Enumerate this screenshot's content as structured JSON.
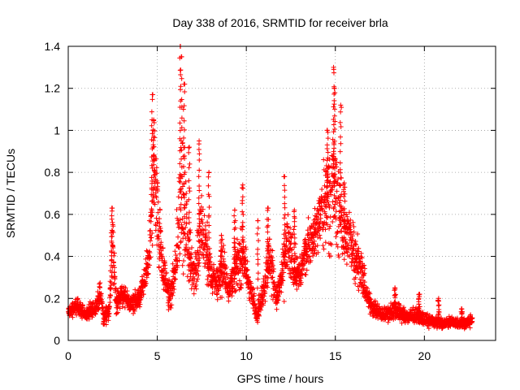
{
  "chart_data": {
    "type": "scatter",
    "title": "Day 338 of 2016, SRMTID for receiver brla",
    "xlabel": "GPS time / hours",
    "ylabel": "SRMTID / TECUs",
    "xlim": [
      0,
      24
    ],
    "ylim": [
      0,
      1.4
    ],
    "x_ticks": [
      0,
      5,
      10,
      15,
      20
    ],
    "x_tick_labels": [
      "0",
      "5",
      "10",
      "15",
      "20"
    ],
    "y_ticks": [
      0,
      0.2,
      0.4,
      0.6,
      0.8,
      1.0,
      1.2,
      1.4
    ],
    "y_tick_labels": [
      "0",
      "0.2",
      "0.4",
      "0.6",
      "0.8",
      "1",
      "1.2",
      "1.4"
    ],
    "grid": true,
    "marker": "+",
    "series": [
      {
        "name": "SRMTID",
        "color": "#ff0000",
        "profile": [
          [
            0.0,
            0.14,
            0.05
          ],
          [
            0.5,
            0.16,
            0.06
          ],
          [
            1.0,
            0.12,
            0.05
          ],
          [
            1.5,
            0.15,
            0.06
          ],
          [
            1.8,
            0.22,
            0.08
          ],
          [
            2.0,
            0.1,
            0.05
          ],
          [
            2.3,
            0.15,
            0.06
          ],
          [
            2.5,
            0.45,
            0.2
          ],
          [
            2.7,
            0.18,
            0.08
          ],
          [
            3.0,
            0.22,
            0.08
          ],
          [
            3.5,
            0.17,
            0.06
          ],
          [
            4.0,
            0.2,
            0.07
          ],
          [
            4.3,
            0.28,
            0.1
          ],
          [
            4.6,
            0.45,
            0.2
          ],
          [
            4.8,
            0.8,
            0.35
          ],
          [
            5.0,
            0.65,
            0.35
          ],
          [
            5.3,
            0.35,
            0.15
          ],
          [
            5.7,
            0.2,
            0.1
          ],
          [
            6.0,
            0.3,
            0.15
          ],
          [
            6.3,
            0.7,
            0.45
          ],
          [
            6.5,
            0.6,
            0.4
          ],
          [
            6.8,
            0.4,
            0.2
          ],
          [
            7.1,
            0.3,
            0.15
          ],
          [
            7.4,
            0.5,
            0.3
          ],
          [
            7.7,
            0.45,
            0.25
          ],
          [
            8.0,
            0.3,
            0.12
          ],
          [
            8.4,
            0.28,
            0.12
          ],
          [
            8.7,
            0.35,
            0.15
          ],
          [
            9.0,
            0.25,
            0.1
          ],
          [
            9.4,
            0.35,
            0.15
          ],
          [
            9.8,
            0.4,
            0.2
          ],
          [
            10.2,
            0.25,
            0.1
          ],
          [
            10.6,
            0.12,
            0.05
          ],
          [
            11.0,
            0.25,
            0.12
          ],
          [
            11.3,
            0.4,
            0.2
          ],
          [
            11.7,
            0.2,
            0.08
          ],
          [
            12.0,
            0.3,
            0.15
          ],
          [
            12.3,
            0.45,
            0.25
          ],
          [
            12.7,
            0.35,
            0.15
          ],
          [
            13.0,
            0.3,
            0.12
          ],
          [
            13.4,
            0.45,
            0.15
          ],
          [
            13.8,
            0.5,
            0.15
          ],
          [
            14.2,
            0.6,
            0.25
          ],
          [
            14.6,
            0.7,
            0.35
          ],
          [
            14.9,
            0.75,
            0.4
          ],
          [
            15.2,
            0.6,
            0.3
          ],
          [
            15.6,
            0.5,
            0.2
          ],
          [
            16.0,
            0.45,
            0.2
          ],
          [
            16.4,
            0.35,
            0.15
          ],
          [
            16.8,
            0.2,
            0.08
          ],
          [
            17.2,
            0.15,
            0.06
          ],
          [
            17.6,
            0.12,
            0.05
          ],
          [
            18.0,
            0.13,
            0.05
          ],
          [
            18.4,
            0.15,
            0.07
          ],
          [
            18.8,
            0.12,
            0.05
          ],
          [
            19.2,
            0.11,
            0.05
          ],
          [
            19.6,
            0.12,
            0.05
          ],
          [
            20.0,
            0.1,
            0.04
          ],
          [
            20.5,
            0.09,
            0.04
          ],
          [
            21.0,
            0.08,
            0.03
          ],
          [
            21.5,
            0.09,
            0.04
          ],
          [
            22.0,
            0.08,
            0.03
          ],
          [
            22.4,
            0.08,
            0.04
          ],
          [
            22.7,
            0.1,
            0.04
          ]
        ],
        "peaks": [
          [
            2.45,
            0.63
          ],
          [
            4.72,
            1.17
          ],
          [
            4.8,
            1.05
          ],
          [
            6.3,
            1.4
          ],
          [
            6.35,
            1.35
          ],
          [
            6.5,
            1.22
          ],
          [
            6.8,
            0.92
          ],
          [
            7.35,
            0.95
          ],
          [
            7.9,
            0.8
          ],
          [
            8.6,
            0.5
          ],
          [
            9.35,
            0.62
          ],
          [
            9.8,
            0.74
          ],
          [
            10.65,
            0.57
          ],
          [
            11.2,
            0.63
          ],
          [
            12.15,
            0.78
          ],
          [
            12.7,
            0.62
          ],
          [
            14.55,
            1.0
          ],
          [
            14.9,
            1.3
          ],
          [
            14.95,
            1.2
          ],
          [
            15.3,
            1.12
          ],
          [
            15.5,
            0.75
          ],
          [
            18.35,
            0.25
          ],
          [
            19.7,
            0.22
          ],
          [
            20.8,
            0.2
          ],
          [
            22.1,
            0.15
          ]
        ]
      }
    ]
  }
}
